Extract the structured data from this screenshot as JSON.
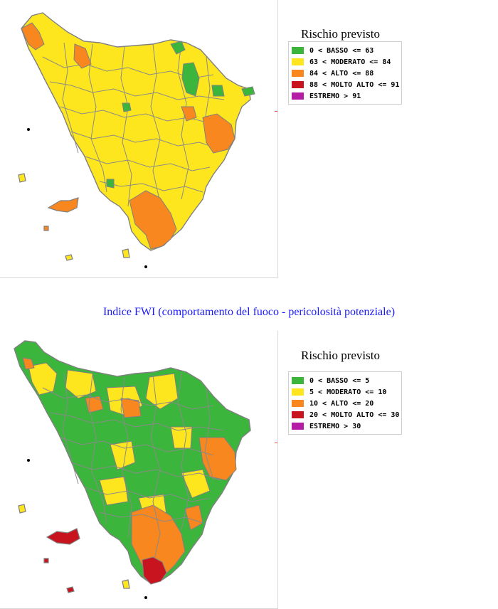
{
  "colors": {
    "basso": "#3cb53c",
    "moderato": "#fde61e",
    "alto": "#f7871e",
    "molto_alto": "#c8141e",
    "estremo": "#b41ea5",
    "border": "#808080"
  },
  "map1": {
    "legend_title": "Rischio previsto",
    "legend": [
      {
        "label": "0 < BASSO <= 63",
        "color": "#3cb53c"
      },
      {
        "label": "63 < MODERATO <= 84",
        "color": "#fde61e"
      },
      {
        "label": "84 < ALTO <= 88",
        "color": "#f7871e"
      },
      {
        "label": "88 < MOLTO ALTO <= 91",
        "color": "#c8141e"
      },
      {
        "label": "ESTREMO > 91",
        "color": "#b41ea5"
      }
    ]
  },
  "caption": "Indice FWI (comportamento del fuoco - pericolosità potenziale)",
  "map2": {
    "legend_title": "Rischio previsto",
    "legend": [
      {
        "label": "0 < BASSO <= 5",
        "color": "#3cb53c"
      },
      {
        "label": "5 < MODERATO <= 10",
        "color": "#fde61e"
      },
      {
        "label": "10 < ALTO <= 20",
        "color": "#f7871e"
      },
      {
        "label": "20 < MOLTO ALTO <= 30",
        "color": "#c8141e"
      },
      {
        "label": "ESTREMO > 30",
        "color": "#b41ea5"
      }
    ]
  }
}
